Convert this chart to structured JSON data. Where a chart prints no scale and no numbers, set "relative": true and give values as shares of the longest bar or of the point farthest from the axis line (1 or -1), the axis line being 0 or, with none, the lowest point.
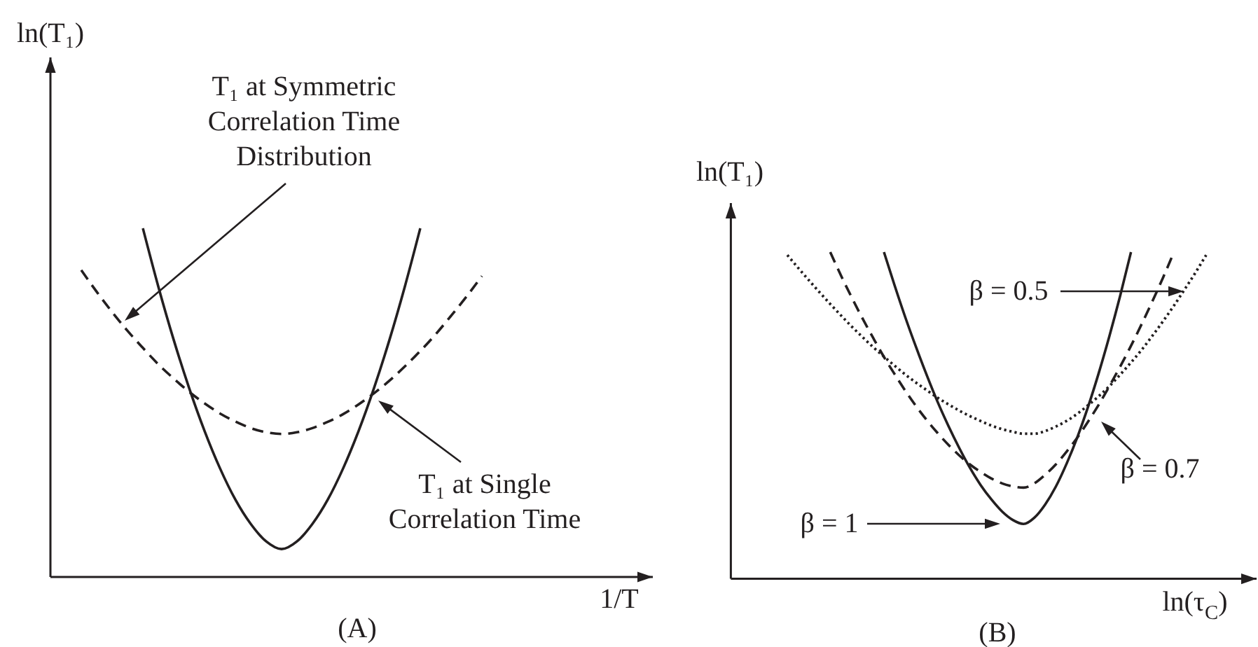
{
  "chart_data": [
    {
      "type": "line",
      "title": "(A)",
      "xlabel": "1/T",
      "ylabel": "ln(T₁)",
      "relative": true,
      "categories": [
        null,
        null,
        null,
        null,
        null,
        null,
        null,
        null,
        null,
        null,
        null,
        null,
        null,
        null,
        null,
        null,
        null,
        null,
        null,
        null,
        null,
        null,
        null,
        null,
        null,
        null,
        null
      ],
      "series": [
        {
          "color": "#231f20",
          "line_style": "dashed",
          "values": [
            0.88,
            0.818,
            0.76,
            0.706,
            0.657,
            0.61,
            0.569,
            0.531,
            0.498,
            0.469,
            0.446,
            0.427,
            0.415,
            0.41,
            0.415,
            0.427,
            0.445,
            0.467,
            0.495,
            0.527,
            0.563,
            0.604,
            0.648,
            0.696,
            0.749,
            0.804,
            0.863
          ]
        },
        {
          "color": "#231f20",
          "line_style": "solid",
          "values": [
            null,
            null,
            null,
            null,
            1,
            0.833,
            0.68,
            0.542,
            0.419,
            0.312,
            0.222,
            0.152,
            0.102,
            0.08,
            0.102,
            0.152,
            0.222,
            0.312,
            0.419,
            0.542,
            0.68,
            0.833,
            1,
            null,
            null,
            null,
            null
          ]
        }
      ],
      "annotations": [
        "T₁ at Symmetric Correlation Time Distribution",
        "T₁ at Single Correlation Time"
      ]
    },
    {
      "type": "line",
      "title": "(B)",
      "xlabel": "ln(τ$_{C}$)",
      "ylabel": "ln(T₁)",
      "relative": true,
      "categories": [
        null,
        null,
        null,
        null,
        null,
        null,
        null,
        null,
        null,
        null,
        null,
        null,
        null,
        null,
        null,
        null,
        null,
        null,
        null,
        null,
        null,
        null,
        null,
        null,
        null,
        null,
        null,
        null,
        null,
        null,
        null,
        null,
        null,
        null,
        null,
        null,
        null,
        null,
        null,
        null
      ],
      "series": [
        {
          "color": "#231f20",
          "line_style": "solid",
          "values": [
            null,
            null,
            null,
            null,
            null,
            null,
            null,
            null,
            null,
            1,
            0.897,
            0.799,
            0.708,
            0.622,
            0.541,
            0.468,
            0.401,
            0.34,
            0.287,
            0.243,
            0.206,
            0.18,
            0.168,
            0.187,
            0.227,
            0.282,
            0.352,
            0.433,
            0.526,
            0.63,
            0.744,
            0.867,
            1,
            null,
            null,
            null,
            null,
            null,
            null,
            null
          ]
        },
        {
          "color": "#231f20",
          "line_style": "dashed",
          "values": [
            null,
            null,
            null,
            null,
            1,
            0.928,
            0.861,
            0.797,
            0.737,
            0.679,
            0.626,
            0.575,
            0.528,
            0.485,
            0.446,
            0.41,
            0.378,
            0.35,
            0.327,
            0.307,
            0.292,
            0.283,
            0.279,
            0.292,
            0.318,
            0.35,
            0.389,
            0.432,
            0.481,
            0.533,
            0.59,
            0.65,
            0.713,
            0.78,
            0.85,
            0.923,
            1,
            null,
            null,
            null
          ]
        },
        {
          "color": "#231f20",
          "line_style": "dotted",
          "values": [
            0.991,
            0.952,
            0.914,
            0.877,
            0.841,
            0.806,
            0.772,
            0.74,
            0.709,
            0.68,
            0.652,
            0.625,
            0.6,
            0.577,
            0.554,
            0.534,
            0.515,
            0.498,
            0.483,
            0.469,
            0.458,
            0.45,
            0.444,
            0.444,
            0.452,
            0.466,
            0.483,
            0.505,
            0.531,
            0.559,
            0.59,
            0.625,
            0.662,
            0.701,
            0.744,
            0.789,
            0.836,
            0.886,
            0.937,
            0.991
          ]
        }
      ],
      "annotations": [
        "β = 1",
        "β = 0.7",
        "β = 0.5"
      ]
    }
  ]
}
